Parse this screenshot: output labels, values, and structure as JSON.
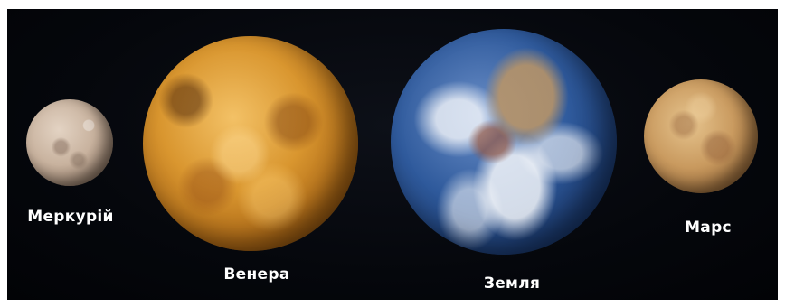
{
  "planets": [
    {
      "id": "mercury",
      "label": "Меркурій",
      "color": "#c8b29e"
    },
    {
      "id": "venus",
      "label": "Венера",
      "color": "#d9962f"
    },
    {
      "id": "earth",
      "label": "Земля",
      "color": "#2f5a9c"
    },
    {
      "id": "mars",
      "label": "Марс",
      "color": "#c99a5f"
    }
  ]
}
